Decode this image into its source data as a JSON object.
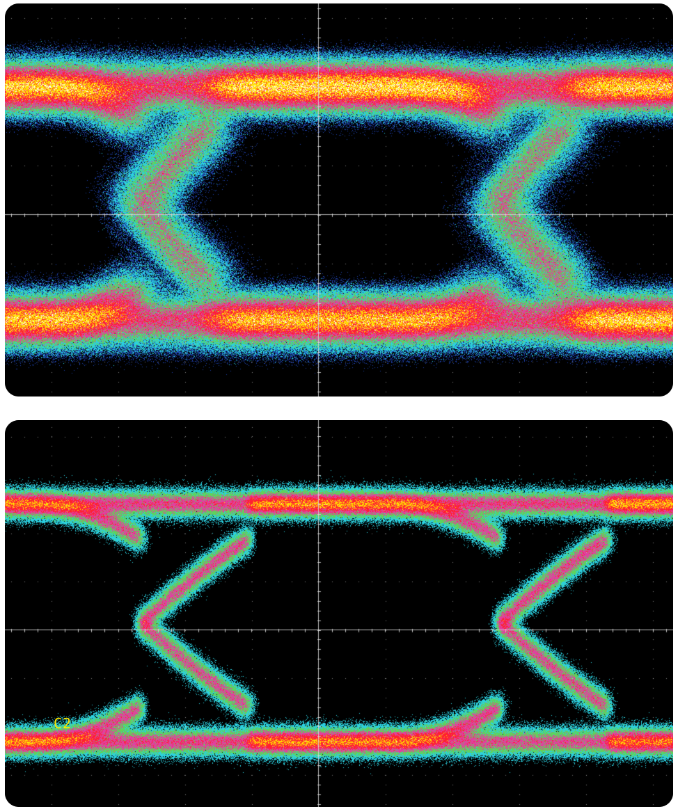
{
  "title": "",
  "panels": [
    {
      "id": "top",
      "style": "heavy-jitter eye diagram",
      "channel_label": "",
      "colors": [
        "#1e3fa8",
        "#2bd0e0",
        "#5fd35a",
        "#e040a0",
        "#ff2030",
        "#ffe000",
        "#ffffff"
      ]
    },
    {
      "id": "bottom",
      "style": "clean eye diagram",
      "channel_label": "C2",
      "colors": [
        "#1e3fa8",
        "#2bd0e0",
        "#5fd35a",
        "#e040a0",
        "#ff2030",
        "#ffe000",
        "#ffffff"
      ]
    }
  ],
  "colors": {
    "background": "#000000",
    "graticule": "#d8d8d8",
    "frame": "#ffffff",
    "label": "#ffe800"
  },
  "graticule": {
    "divisions_x": 10,
    "divisions_y": 8
  }
}
